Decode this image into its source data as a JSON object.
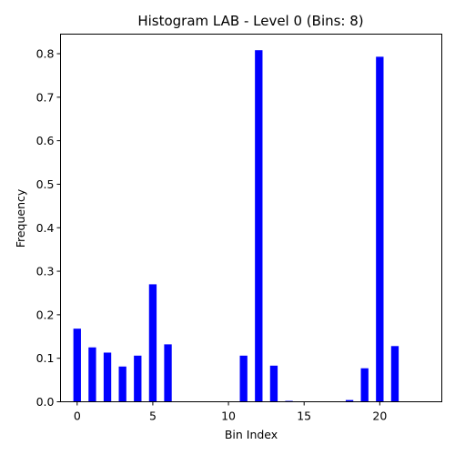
{
  "chart_data": {
    "type": "bar",
    "title": "Histogram LAB - Level 0 (Bins: 8)",
    "xlabel": "Bin Index",
    "ylabel": "Frequency",
    "xlim": [
      -1.1,
      24.1
    ],
    "ylim": [
      0,
      0.845
    ],
    "xticks": [
      0,
      5,
      10,
      15,
      20
    ],
    "yticks": [
      0.0,
      0.1,
      0.2,
      0.3,
      0.4,
      0.5,
      0.6,
      0.7,
      0.8
    ],
    "bar_width": 0.5,
    "bar_color": "#0000ff",
    "grid": false,
    "x": [
      0,
      1,
      2,
      3,
      4,
      5,
      6,
      7,
      8,
      9,
      10,
      11,
      12,
      13,
      14,
      15,
      16,
      17,
      18,
      19,
      20,
      21,
      22,
      23
    ],
    "values": [
      0.168,
      0.125,
      0.113,
      0.081,
      0.106,
      0.27,
      0.132,
      0.0,
      0.0,
      0.0,
      0.0,
      0.106,
      0.808,
      0.083,
      0.002,
      0.0,
      0.0,
      0.0,
      0.004,
      0.077,
      0.793,
      0.128,
      0.0,
      0.0
    ]
  }
}
